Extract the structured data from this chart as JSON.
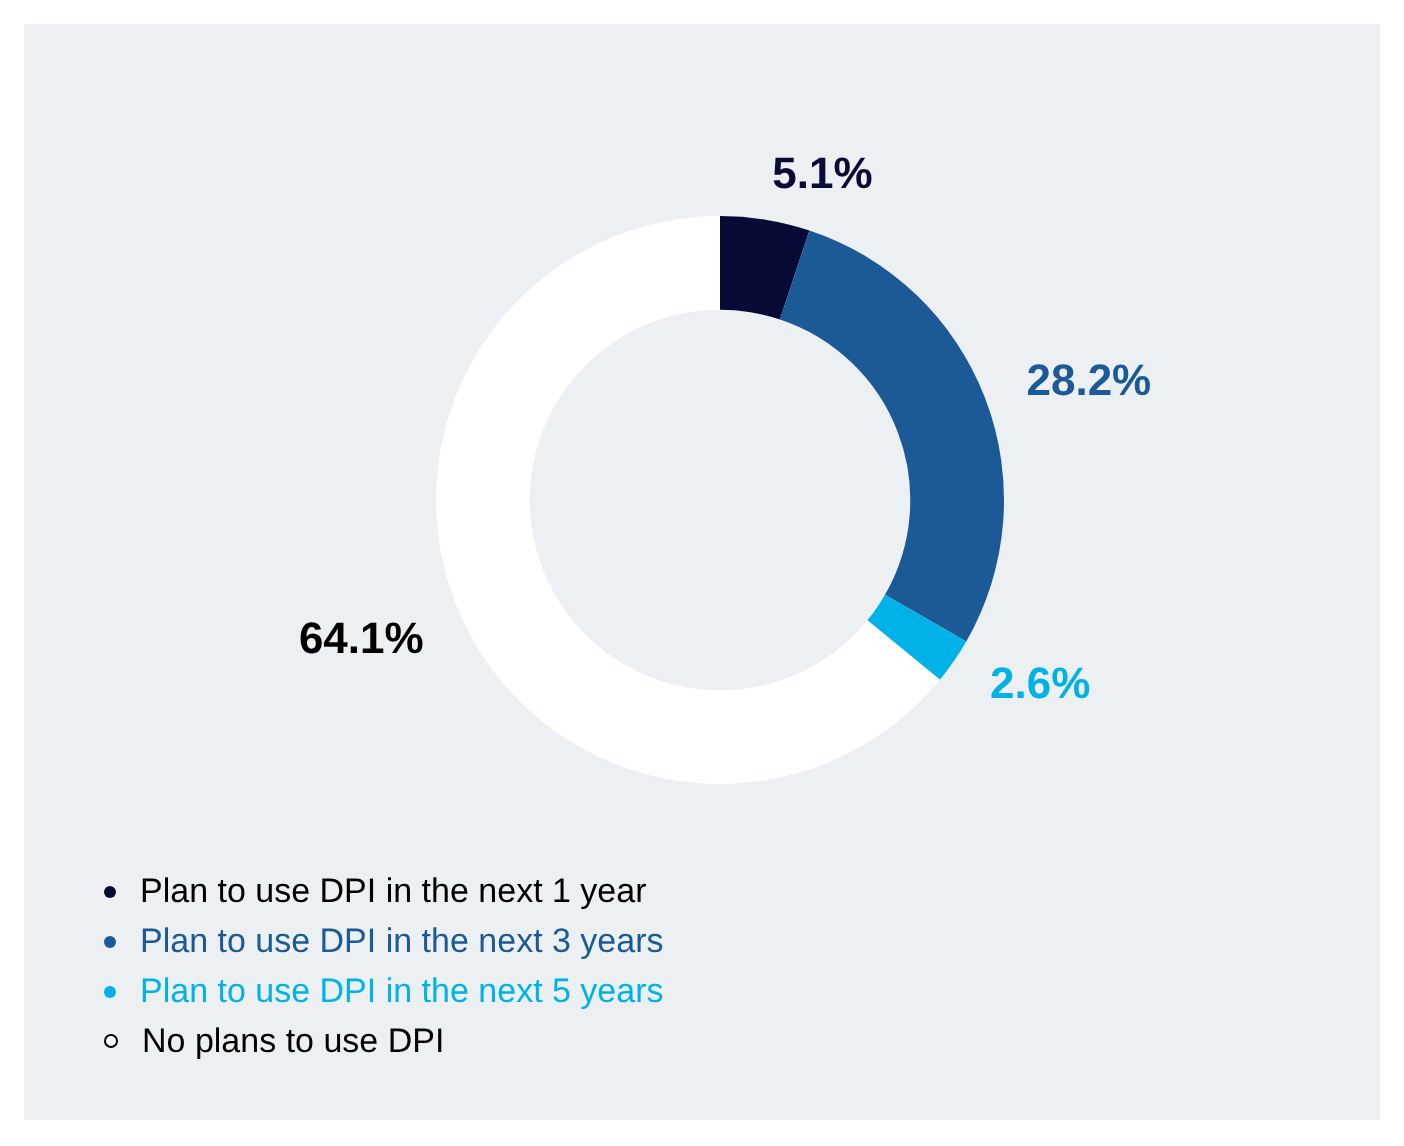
{
  "chart_data": {
    "type": "donut",
    "categories": [
      "Plan to use DPI in the next 1 year",
      "Plan to use DPI in the next 3 years",
      "Plan to use DPI in the next 5 years",
      "No plans to use DPI"
    ],
    "values": [
      5.1,
      28.2,
      2.6,
      64.1
    ],
    "colors": [
      "#070b35",
      "#1b5a96",
      "#00b2e8",
      "#ffffff"
    ],
    "value_labels": [
      "5.1%",
      "28.2%",
      "2.6%",
      "64.1%"
    ],
    "legend": "bottom left"
  }
}
